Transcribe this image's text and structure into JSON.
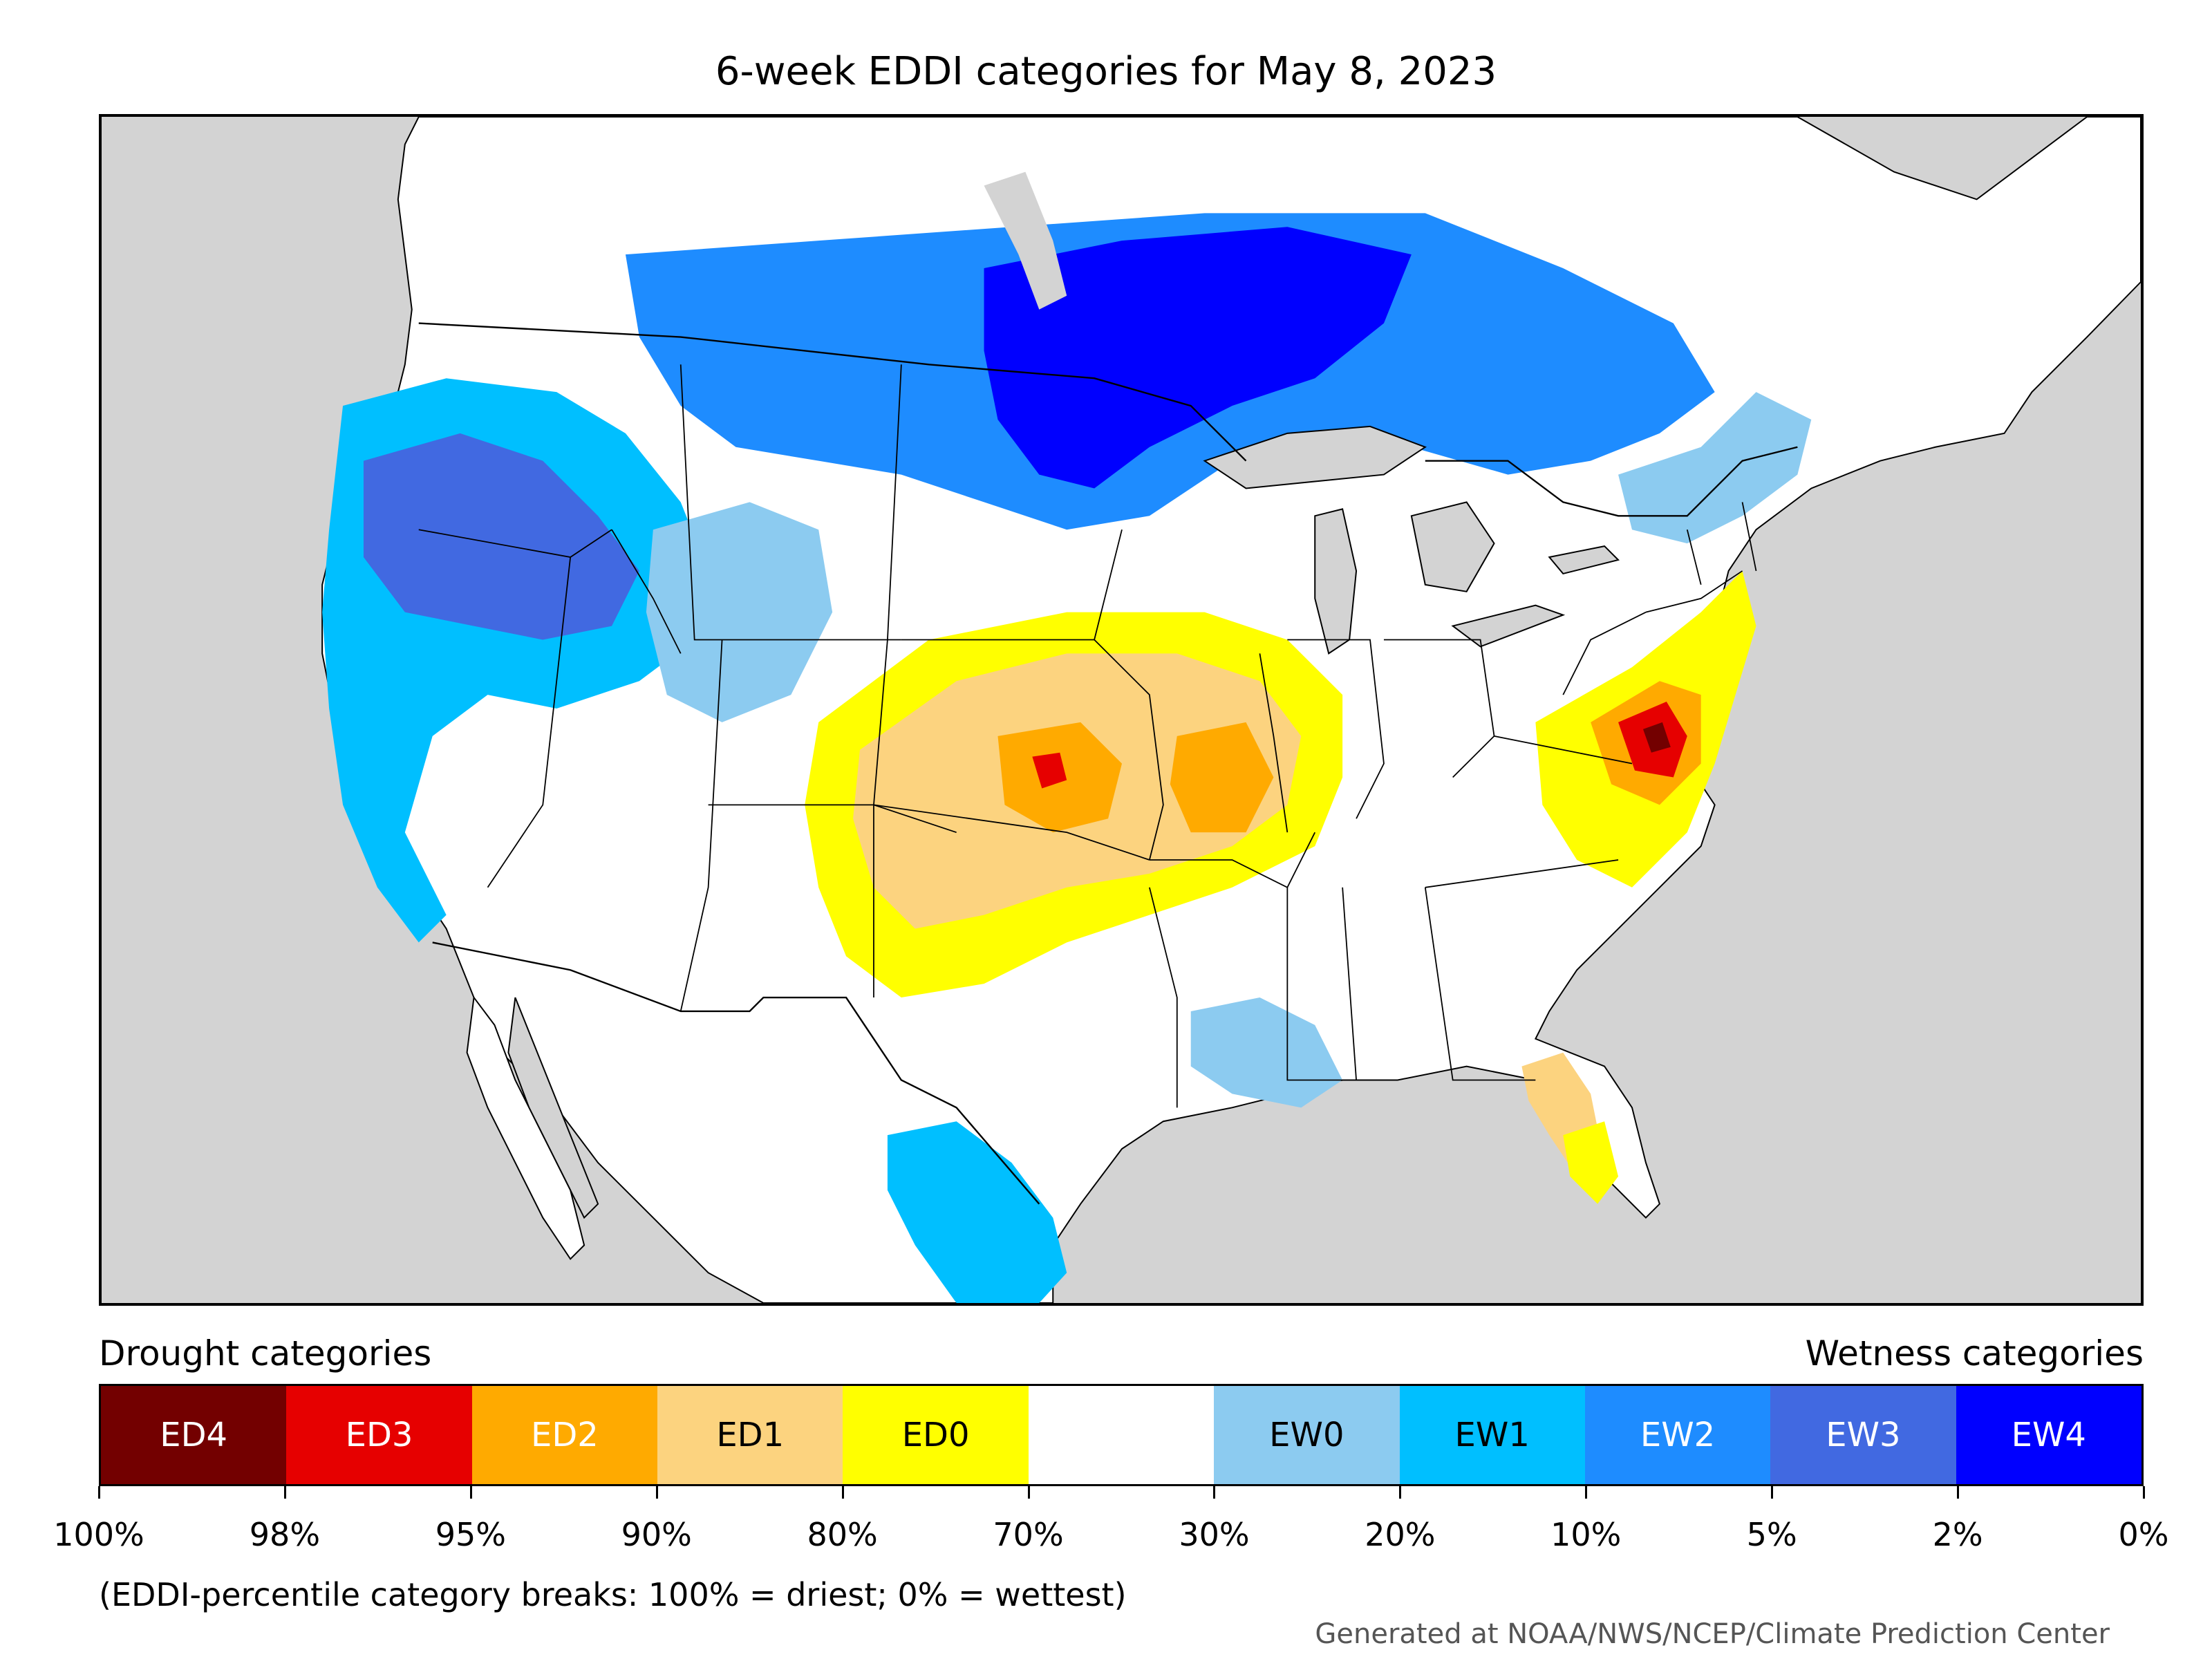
{
  "title": "6-week EDDI categories for May 8, 2023",
  "legend": {
    "drought_heading": "Drought categories",
    "wetness_heading": "Wetness categories",
    "categories": [
      {
        "label": "ED4",
        "color": "#730000",
        "text_color": "#ffffff"
      },
      {
        "label": "ED3",
        "color": "#e60000",
        "text_color": "#ffffff"
      },
      {
        "label": "ED2",
        "color": "#ffaa00",
        "text_color": "#ffffff"
      },
      {
        "label": "ED1",
        "color": "#fcd37f",
        "text_color": "#000000"
      },
      {
        "label": "ED0",
        "color": "#ffff00",
        "text_color": "#000000"
      },
      {
        "label": "",
        "color": "#ffffff",
        "text_color": "#000000"
      },
      {
        "label": "EW0",
        "color": "#8ccbf0",
        "text_color": "#000000"
      },
      {
        "label": "EW1",
        "color": "#00bfff",
        "text_color": "#000000"
      },
      {
        "label": "EW2",
        "color": "#1e8cff",
        "text_color": "#ffffff"
      },
      {
        "label": "EW3",
        "color": "#4169e1",
        "text_color": "#ffffff"
      },
      {
        "label": "EW4",
        "color": "#0000ff",
        "text_color": "#ffffff"
      }
    ],
    "tick_labels": [
      "100%",
      "98%",
      "95%",
      "90%",
      "80%",
      "70%",
      "30%",
      "20%",
      "10%",
      "5%",
      "2%",
      "0%"
    ]
  },
  "footnote": "(EDDI-percentile category breaks: 100% = driest; 0% = wettest)",
  "credit": "Generated at NOAA/NWS/NCEP/Climate Prediction Center",
  "map": {
    "colors": {
      "ocean": "#d3d3d3",
      "land": "#ffffff",
      "lakes": "#d3d3d3",
      "border": "#000000"
    }
  }
}
